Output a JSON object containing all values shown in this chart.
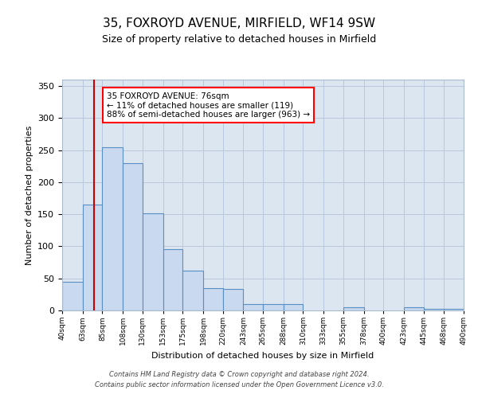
{
  "title_line1": "35, FOXROYD AVENUE, MIRFIELD, WF14 9SW",
  "title_line2": "Size of property relative to detached houses in Mirfield",
  "xlabel": "Distribution of detached houses by size in Mirfield",
  "ylabel": "Number of detached properties",
  "bar_left_edges": [
    40,
    63,
    85,
    108,
    130,
    153,
    175,
    198,
    220,
    243,
    265,
    288,
    310,
    333,
    355,
    378,
    400,
    423,
    445,
    468
  ],
  "bar_widths": [
    23,
    22,
    23,
    22,
    23,
    22,
    23,
    22,
    23,
    22,
    23,
    22,
    23,
    22,
    23,
    22,
    23,
    22,
    23,
    22
  ],
  "bar_heights": [
    45,
    165,
    255,
    230,
    152,
    96,
    62,
    35,
    33,
    10,
    10,
    10,
    0,
    0,
    5,
    0,
    0,
    5,
    2,
    2
  ],
  "bar_facecolor": "#c9d9f0",
  "bar_edgecolor": "#5a8fc4",
  "bar_linewidth": 0.8,
  "vline_x": 76,
  "vline_color": "#cc0000",
  "ylim": [
    0,
    360
  ],
  "xlim": [
    40,
    490
  ],
  "yticks": [
    0,
    50,
    100,
    150,
    200,
    250,
    300,
    350
  ],
  "xtick_labels": [
    "40sqm",
    "63sqm",
    "85sqm",
    "108sqm",
    "130sqm",
    "153sqm",
    "175sqm",
    "198sqm",
    "220sqm",
    "243sqm",
    "265sqm",
    "288sqm",
    "310sqm",
    "333sqm",
    "355sqm",
    "378sqm",
    "400sqm",
    "423sqm",
    "445sqm",
    "468sqm",
    "490sqm"
  ],
  "xtick_positions": [
    40,
    63,
    85,
    108,
    130,
    153,
    175,
    198,
    220,
    243,
    265,
    288,
    310,
    333,
    355,
    378,
    400,
    423,
    445,
    468,
    490
  ],
  "annotation_title": "35 FOXROYD AVENUE: 76sqm",
  "annotation_line2": "← 11% of detached houses are smaller (119)",
  "annotation_line3": "88% of semi-detached houses are larger (963) →",
  "grid_color": "#b8c8dc",
  "background_color": "#dce6f0",
  "footer_line1": "Contains HM Land Registry data © Crown copyright and database right 2024.",
  "footer_line2": "Contains public sector information licensed under the Open Government Licence v3.0."
}
